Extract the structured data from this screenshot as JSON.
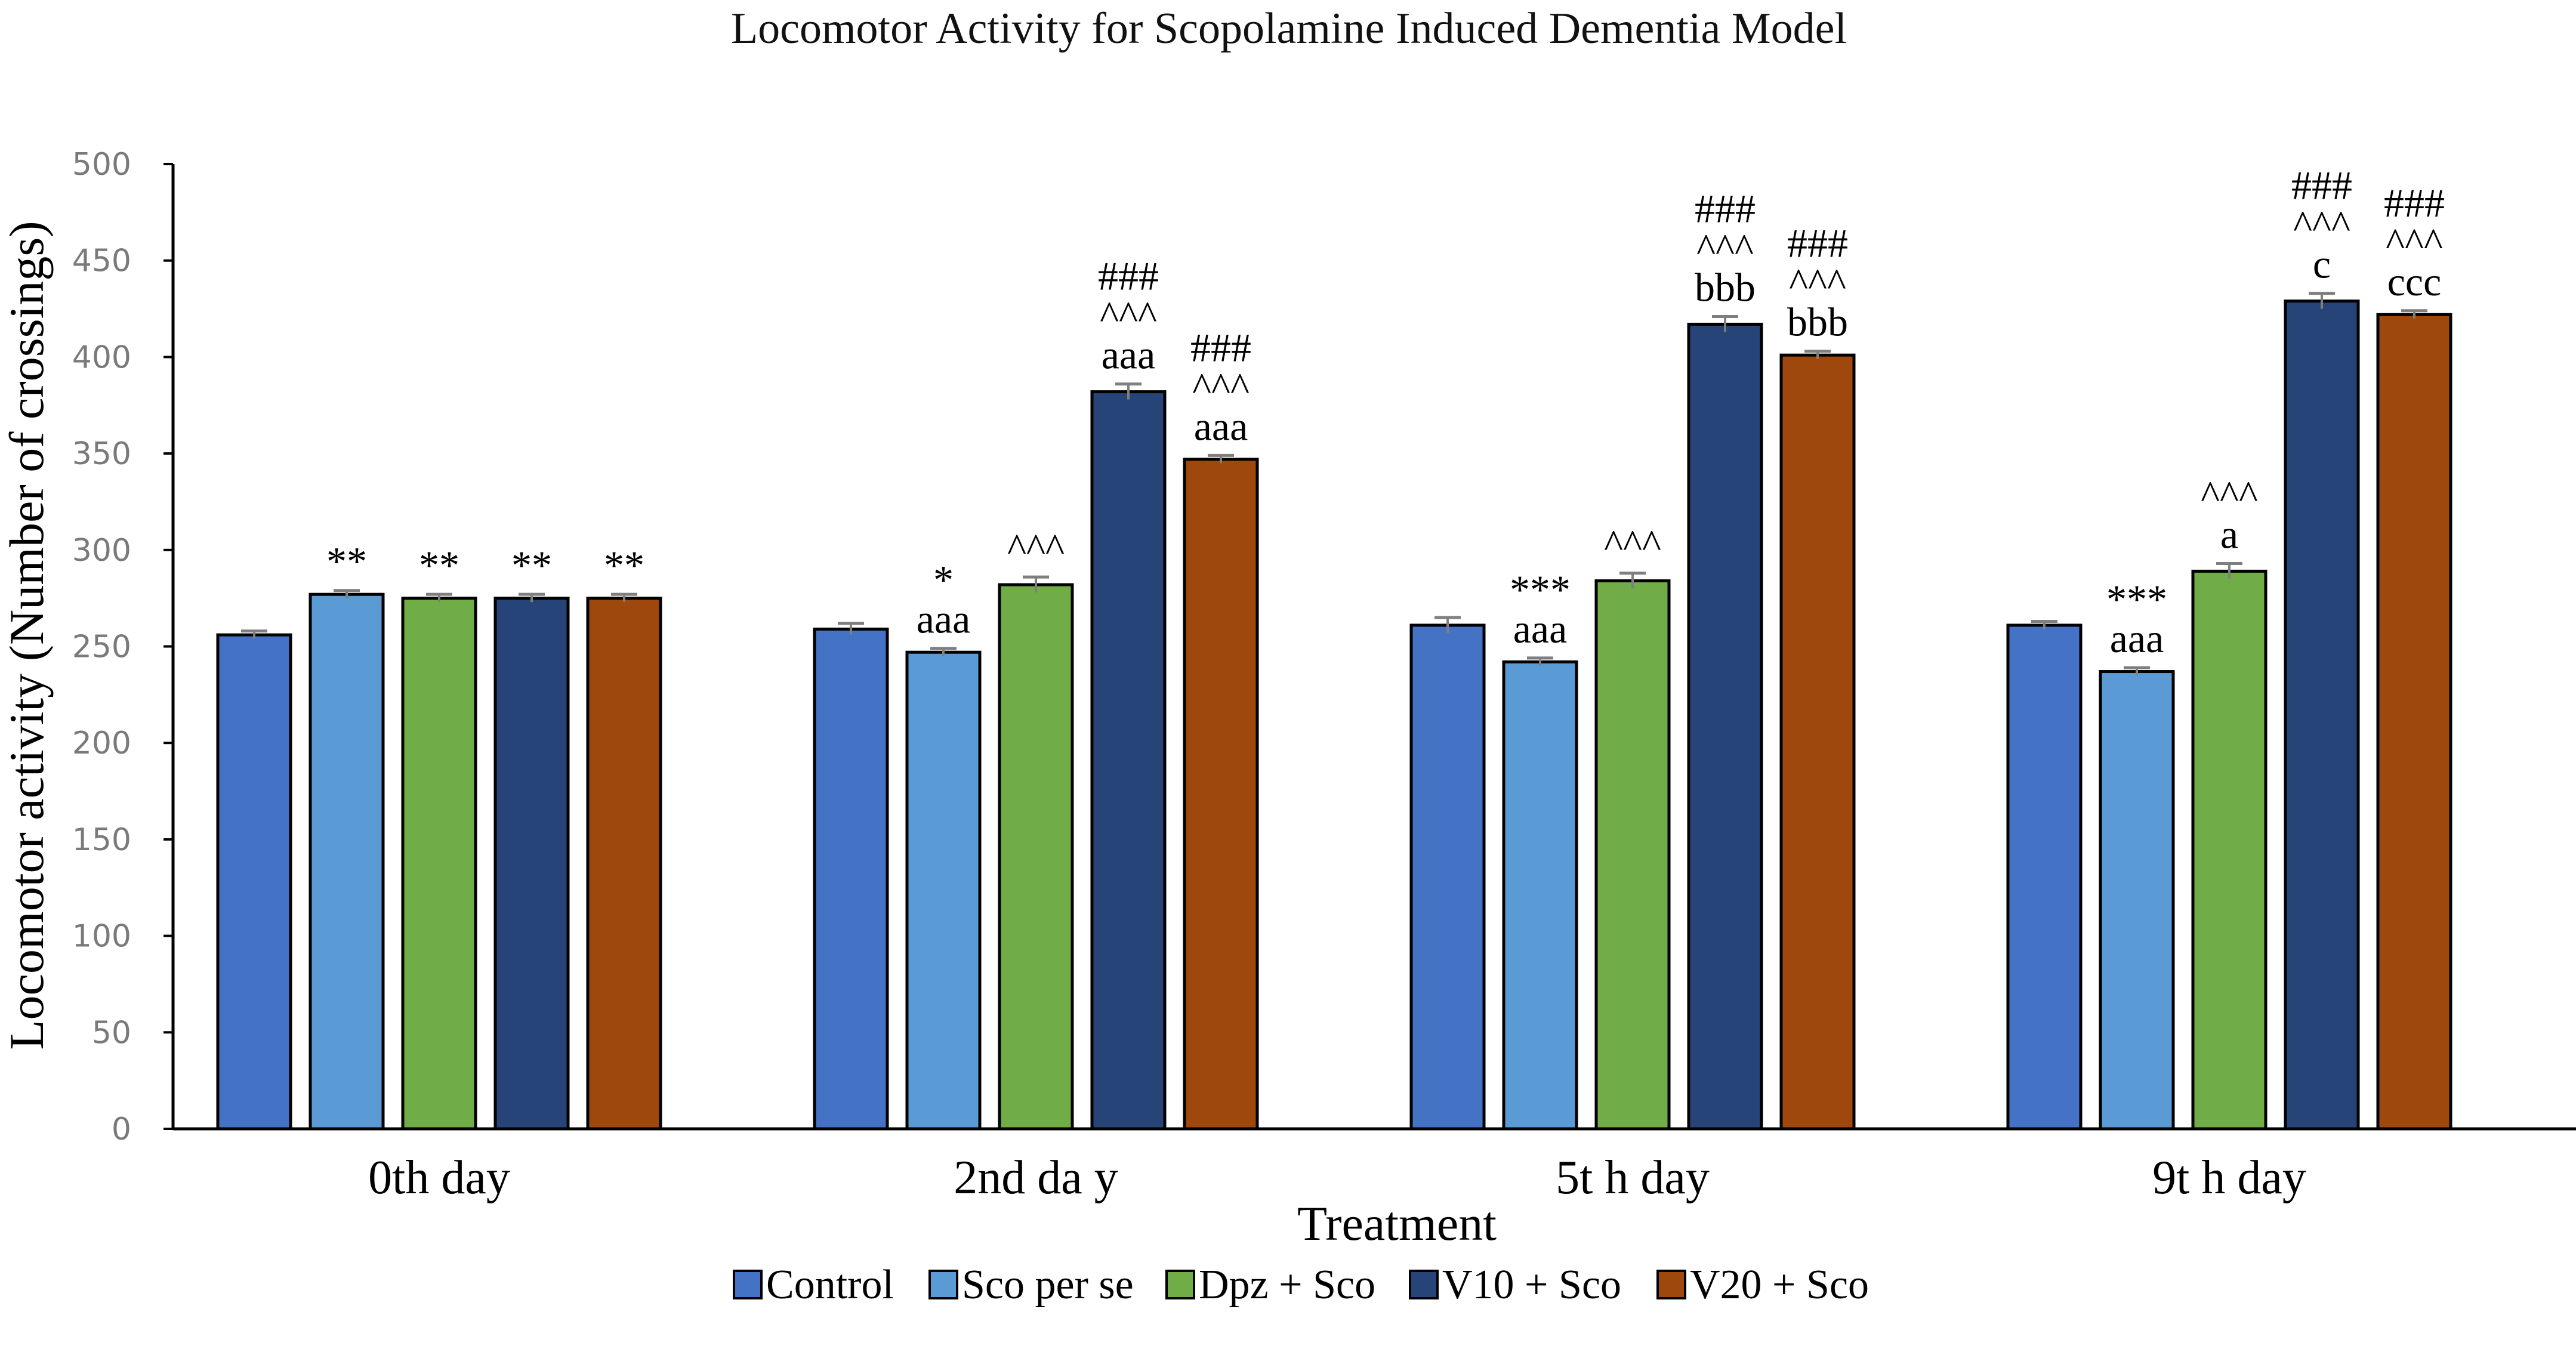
{
  "chart_data": {
    "type": "bar",
    "title": "Locomotor Activity for Scopolamine Induced Dementia Model",
    "xlabel": "Treatment",
    "ylabel": "Locomotor activity (Number of crossings)",
    "ylim": [
      0,
      500
    ],
    "yticks": [
      "0",
      "50",
      "100",
      "150",
      "200",
      "250",
      "300",
      "350",
      "400",
      "450",
      "500"
    ],
    "grid": false,
    "legend_position": "bottom-center",
    "categories": [
      "0th day",
      "2nd da y",
      "5t h day",
      "9t h day"
    ],
    "series": [
      {
        "name": "Control",
        "color": "#4472C4",
        "values": [
          256,
          259,
          261,
          261
        ],
        "errors": [
          2,
          3,
          4,
          2
        ],
        "annotations": [
          [],
          [],
          [],
          []
        ]
      },
      {
        "name": "Sco per se",
        "color": "#5B9BD5",
        "values": [
          277,
          247,
          242,
          237
        ],
        "errors": [
          2,
          2,
          2,
          2
        ],
        "annotations": [
          [
            "**"
          ],
          [
            "aaa",
            "*"
          ],
          [
            "aaa",
            "***"
          ],
          [
            "aaa",
            "***"
          ]
        ]
      },
      {
        "name": "Dpz + Sco",
        "color": "#70AD47",
        "values": [
          275,
          282,
          284,
          289
        ],
        "errors": [
          2,
          4,
          4,
          4
        ],
        "annotations": [
          [
            "**"
          ],
          [
            "^^^"
          ],
          [
            "^^^"
          ],
          [
            "a",
            "^^^"
          ]
        ]
      },
      {
        "name": "V10 + Sco",
        "color": "#264478",
        "values": [
          275,
          382,
          417,
          429
        ],
        "errors": [
          2,
          4,
          4,
          4
        ],
        "annotations": [
          [
            "**"
          ],
          [
            "aaa",
            "^^^",
            "###"
          ],
          [
            "bbb",
            "^^^",
            "###"
          ],
          [
            "c",
            "^^^",
            "###"
          ]
        ]
      },
      {
        "name": "V20 + Sco",
        "color": "#9E480E",
        "values": [
          275,
          347,
          401,
          422
        ],
        "errors": [
          2,
          2,
          2,
          2
        ],
        "annotations": [
          [
            "**"
          ],
          [
            "aaa",
            "^^^",
            "###"
          ],
          [
            "bbb",
            "^^^",
            "###"
          ],
          [
            "ccc",
            "^^^",
            "###"
          ]
        ]
      }
    ]
  }
}
